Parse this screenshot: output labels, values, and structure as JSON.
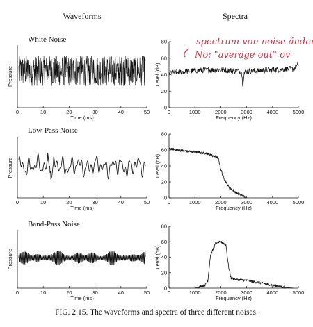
{
  "column_titles": {
    "left": "Waveforms",
    "right": "Spectra"
  },
  "caption": "FIG. 2.15. The waveforms and spectra of three different noises.",
  "handwritten_note": {
    "line1": "spectrum von noise ändern",
    "line2": "No: \"average out\" ov"
  },
  "colors": {
    "ink": "#111111",
    "annotation": "#c8384a",
    "background": "#ffffff"
  },
  "chart_data": [
    {
      "type": "line",
      "title": "White Noise",
      "xlabel": "Time (ms)",
      "ylabel": "Pressure",
      "xlim": [
        0,
        50
      ],
      "xticks": [
        0,
        10,
        20,
        30,
        40,
        50
      ],
      "signal": "white",
      "grid": false
    },
    {
      "type": "line",
      "title": "",
      "xlabel": "Frequency (Hz)",
      "ylabel": "Level (dB)",
      "xlim": [
        0,
        5000
      ],
      "ylim": [
        0,
        80
      ],
      "xticks": [
        0,
        1000,
        2000,
        3000,
        4000,
        5000
      ],
      "yticks": [
        0,
        20,
        40,
        60,
        80
      ],
      "x": [
        0,
        1000,
        2000,
        2800,
        2850,
        2900,
        3000,
        4000,
        4800,
        5000
      ],
      "y": [
        42,
        45,
        46,
        44,
        28,
        42,
        44,
        46,
        47,
        52
      ],
      "grid": false
    },
    {
      "type": "line",
      "title": "Low-Pass Noise",
      "xlabel": "Time (ms)",
      "ylabel": "Pressure",
      "xlim": [
        0,
        50
      ],
      "xticks": [
        0,
        10,
        20,
        30,
        40,
        50
      ],
      "signal": "lowpass",
      "grid": false
    },
    {
      "type": "line",
      "title": "",
      "xlabel": "Frequency (Hz)",
      "ylabel": "Level (dB)",
      "xlim": [
        0,
        5000
      ],
      "ylim": [
        0,
        80
      ],
      "xticks": [
        0,
        1000,
        2000,
        3000,
        4000,
        5000
      ],
      "yticks": [
        0,
        20,
        40,
        60,
        80
      ],
      "x": [
        0,
        300,
        800,
        1200,
        1600,
        1900,
        2000,
        2100,
        2300,
        2600,
        2900,
        3000
      ],
      "y": [
        62,
        60,
        58,
        57,
        54,
        50,
        36,
        26,
        14,
        6,
        2,
        0
      ],
      "grid": false
    },
    {
      "type": "line",
      "title": "Band-Pass Noise",
      "xlabel": "Time (ms)",
      "ylabel": "Pressure",
      "xlim": [
        0,
        50
      ],
      "xticks": [
        0,
        10,
        20,
        30,
        40,
        50
      ],
      "signal": "bandpass",
      "grid": false
    },
    {
      "type": "line",
      "title": "",
      "xlabel": "Frequency (Hz)",
      "ylabel": "Level (dB)",
      "xlim": [
        0,
        5000
      ],
      "ylim": [
        0,
        80
      ],
      "xticks": [
        0,
        1000,
        2000,
        3000,
        4000,
        5000
      ],
      "yticks": [
        0,
        20,
        40,
        60,
        80
      ],
      "x": [
        1000,
        1200,
        1400,
        1500,
        1600,
        1800,
        2000,
        2200,
        2300,
        2400,
        2600,
        3000,
        3500,
        4000,
        4500,
        4800
      ],
      "y": [
        0,
        2,
        4,
        10,
        42,
        58,
        60,
        56,
        28,
        13,
        11,
        10,
        7,
        4,
        1,
        0
      ],
      "grid": false
    }
  ]
}
